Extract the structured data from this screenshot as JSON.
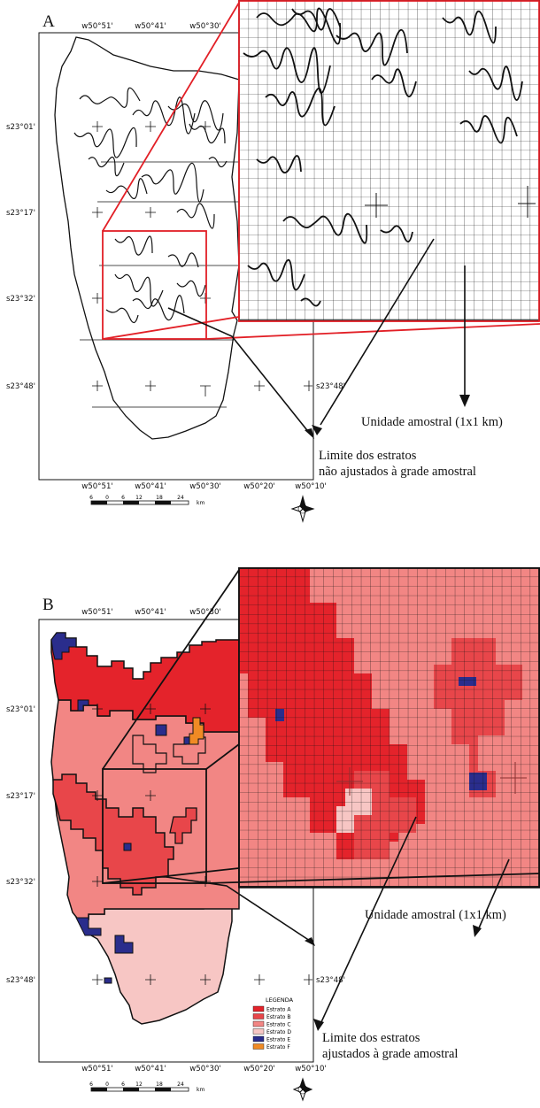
{
  "panels": [
    {
      "letter": "A",
      "coords": {
        "top_lon": [
          "w50°51'",
          "w50°41'",
          "w50°30'"
        ],
        "bottom_lon": [
          "w50°51'",
          "w50°41'",
          "w50°30'",
          "w50°20'",
          "w50°10'"
        ],
        "left_lat": [
          "s23°01'",
          "s23°17'",
          "s23°32'",
          "s23°48'"
        ],
        "right_lat": "s23°48'"
      },
      "unit_label": "Unidade amostral (1x1 km)",
      "limit_label_line1": "Limite dos estratos",
      "limit_label_line2": "não ajustados à grade amostral",
      "scalebar": [
        "6",
        "0",
        "6",
        "12",
        "18",
        "24",
        "km"
      ]
    },
    {
      "letter": "B",
      "coords": {
        "top_lon": [
          "w50°51'",
          "w50°41'",
          "w50°30'"
        ],
        "bottom_lon": [
          "w50°51'",
          "w50°41'",
          "w50°30'",
          "w50°20'",
          "w50°10'"
        ],
        "left_lat": [
          "s23°01'",
          "s23°17'",
          "s23°32'",
          "s23°48'"
        ],
        "right_lat": "s23°48'"
      },
      "unit_label": "Unidade amostral (1x1 km)",
      "limit_label_line1": "Limite dos estratos",
      "limit_label_line2": "ajustados à grade amostral",
      "scalebar": [
        "6",
        "0",
        "6",
        "12",
        "18",
        "24",
        "km"
      ]
    }
  ],
  "legend": {
    "title": "LEGENDA",
    "items": [
      {
        "label": "Estrato A",
        "color": "#e4232b"
      },
      {
        "label": "Estrato B",
        "color": "#e8464a"
      },
      {
        "label": "Estrato C",
        "color": "#f28684"
      },
      {
        "label": "Estrato D",
        "color": "#f7c6c4"
      },
      {
        "label": "Estrato E",
        "color": "#2a2d8c"
      },
      {
        "label": "Estrato F",
        "color": "#f08a24"
      }
    ]
  },
  "colors": {
    "highlight_red": "#e21f26",
    "grid_line": "#111111",
    "inset_b_background": "#f28684"
  }
}
